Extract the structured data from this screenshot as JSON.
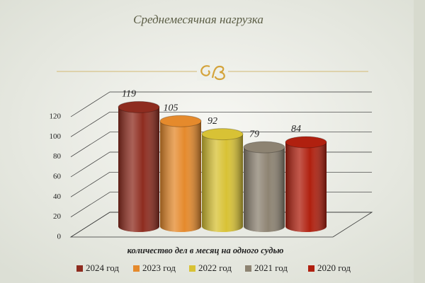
{
  "chart_data": {
    "type": "bar3d",
    "title": "Среднемесячная нагрузка",
    "x_label": "количество дел в месяц на одного судью",
    "series": [
      {
        "name": "2024 год",
        "color": "#8e2c1f",
        "values": [
          119
        ]
      },
      {
        "name": "2023 год",
        "color": "#e58a2c",
        "values": [
          105
        ]
      },
      {
        "name": "2022 год",
        "color": "#d8c235",
        "values": [
          92
        ]
      },
      {
        "name": "2021 год",
        "color": "#8d8372",
        "values": [
          79
        ]
      },
      {
        "name": "2020 год",
        "color": "#b0200f",
        "values": [
          84
        ]
      }
    ],
    "ylim": [
      0,
      120
    ],
    "yticks": [
      0,
      20,
      40,
      60,
      80,
      100,
      120
    ],
    "grid": true,
    "legend": "bottom"
  }
}
